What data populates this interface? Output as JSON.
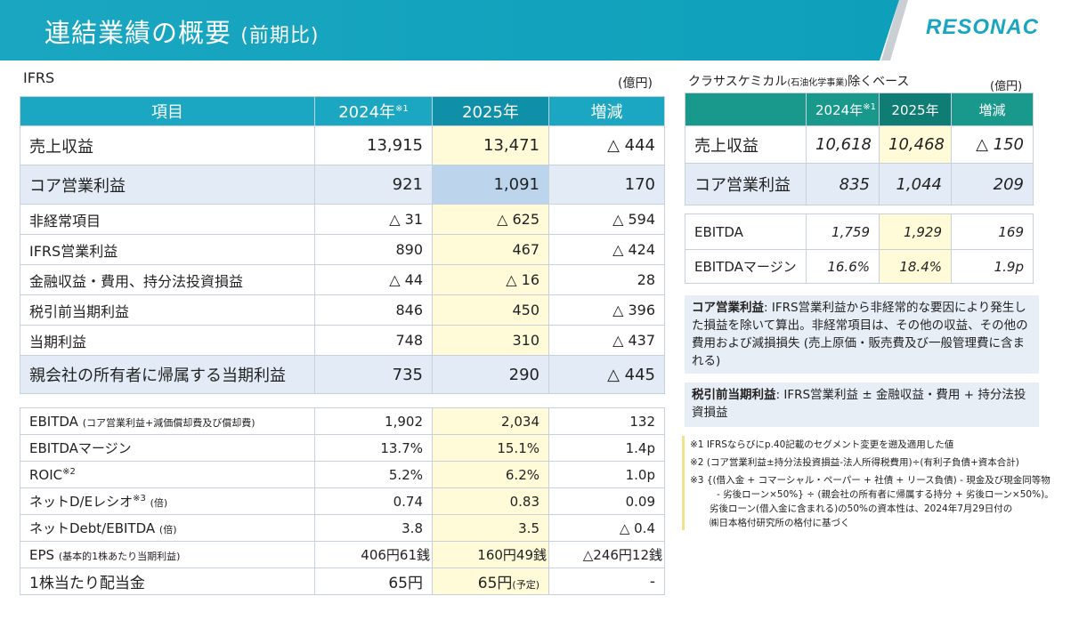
{
  "header": {
    "title": "連結業績の概要",
    "title_suffix": "(前期比)",
    "logo": "RESONAC"
  },
  "left": {
    "label": "IFRS",
    "unit": "(億円)",
    "columns": [
      "項目",
      "2024年",
      "2025年",
      "増減"
    ],
    "col_note": "※1",
    "rows": [
      [
        "売上収益",
        "13,915",
        "13,471",
        "△ 444"
      ],
      [
        "コア営業利益",
        "921",
        "1,091",
        "170"
      ],
      [
        "非経常項目",
        "△ 31",
        "△ 625",
        "△ 594"
      ],
      [
        "IFRS営業利益",
        "890",
        "467",
        "△ 424"
      ],
      [
        "金融収益・費用、持分法投資損益",
        "△ 44",
        "△ 16",
        "28"
      ],
      [
        "税引前当期利益",
        "846",
        "450",
        "△ 396"
      ],
      [
        "当期利益",
        "748",
        "310",
        "△ 437"
      ],
      [
        "親会社の所有者に帰属する当期利益",
        "735",
        "290",
        "△ 445"
      ]
    ],
    "rows2": [
      {
        "label": "EBITDA",
        "sub": "(コア営業利益+減価償却費及び償却費)",
        "sup": "",
        "v": [
          "1,902",
          "2,034",
          "132"
        ]
      },
      {
        "label": "EBITDAマージン",
        "sub": "",
        "sup": "",
        "v": [
          "13.7%",
          "15.1%",
          "1.4p"
        ]
      },
      {
        "label": "ROIC",
        "sub": "",
        "sup": "※2",
        "v": [
          "5.2%",
          "6.2%",
          "1.0p"
        ]
      },
      {
        "label": "ネットD/Eレシオ",
        "sub": "(倍)",
        "sup": "※3",
        "v": [
          "0.74",
          "0.83",
          "0.09"
        ]
      },
      {
        "label": "ネットDebt/EBITDA",
        "sub": "(倍)",
        "sup": "",
        "v": [
          "3.8",
          "3.5",
          "△ 0.4"
        ]
      },
      {
        "label": "EPS",
        "sub": "(基本的1株あたり当期利益)",
        "sup": "",
        "v": [
          "406円61銭",
          "160円49銭",
          "△246円12銭"
        ]
      },
      {
        "label": "1株当たり配当金",
        "sub": "",
        "sup": "",
        "v": [
          "65円",
          "65円",
          "-"
        ],
        "v2_note": "(予定)"
      }
    ]
  },
  "right": {
    "label": "クラサスケミカル",
    "label_sub": "(石油化学事業)",
    "label_end": "除くベース",
    "unit": "(億円)",
    "columns": [
      "",
      "2024年",
      "2025年",
      "増減"
    ],
    "col_note": "※1",
    "rows": [
      [
        "売上収益",
        "10,618",
        "10,468",
        "△ 150"
      ],
      [
        "コア営業利益",
        "835",
        "1,044",
        "209"
      ]
    ],
    "rows2": [
      [
        "EBITDA",
        "1,759",
        "1,929",
        "169"
      ],
      [
        "EBITDAマージン",
        "16.6%",
        "18.4%",
        "1.9p"
      ]
    ]
  },
  "notes": [
    {
      "term": "コア営業利益",
      "text": ": IFRS営業利益から非経常的な要因により発生した損益を除いて算出。非経常項目は、その他の収益、その他の費用および減損損失 (売上原価・販売費及び一般管理費に含まれる)"
    },
    {
      "term": "税引前当期利益",
      "text": ": IFRS営業利益 ± 金融収益・費用 + 持分法投資損益"
    }
  ],
  "footnotes": [
    "※1 IFRSならびにp.40記載のセグメント変更を遡及適用した値",
    "※2 (コア営業利益±持分法投資損益-法人所得税費用)÷(有利子負債+資本合計)",
    "※3 {(借入金 + コマーシャル・ペーパー + 社債 + リース負債) - 現金及び現金同等物",
    "- 劣後ローン×50%} ÷ (親会社の所有者に帰属する持分 + 劣後ローン×50%)。",
    "劣後ローン(借入金に含まれる)の50%の資本性は、2024年7月29日付の",
    "㈱日本格付研究所の格付に基づく"
  ]
}
